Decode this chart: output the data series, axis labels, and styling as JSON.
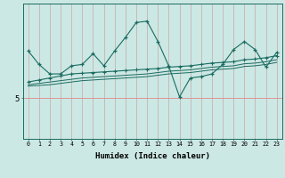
{
  "xlabel": "Humidex (Indice chaleur)",
  "bg_color": "#cce8e4",
  "line_color": "#1a6b60",
  "vgrid_color": "#c4a8a8",
  "hgrid_color": "#e08888",
  "xlim": [
    -0.5,
    23.5
  ],
  "ylim": [
    2,
    12
  ],
  "ytick_val": 5,
  "x": [
    0,
    1,
    2,
    3,
    4,
    5,
    6,
    7,
    8,
    9,
    10,
    11,
    12,
    13,
    14,
    15,
    16,
    17,
    18,
    19,
    20,
    21,
    22,
    23
  ],
  "series1": [
    8.5,
    7.5,
    6.8,
    6.8,
    7.4,
    7.5,
    8.3,
    7.4,
    8.5,
    9.5,
    10.6,
    10.7,
    9.2,
    7.4,
    5.1,
    6.5,
    6.6,
    6.8,
    7.5,
    8.6,
    9.2,
    8.6,
    7.3,
    8.4
  ],
  "series2_slope": [
    6.2,
    6.35,
    6.5,
    6.65,
    6.8,
    6.85,
    6.9,
    6.95,
    7.0,
    7.05,
    7.1,
    7.15,
    7.2,
    7.3,
    7.35,
    7.4,
    7.5,
    7.6,
    7.65,
    7.7,
    7.85,
    7.9,
    8.0,
    8.15
  ],
  "series3_slope": [
    6.0,
    6.1,
    6.2,
    6.3,
    6.4,
    6.5,
    6.55,
    6.6,
    6.65,
    6.7,
    6.75,
    6.8,
    6.9,
    7.0,
    7.05,
    7.1,
    7.2,
    7.3,
    7.35,
    7.4,
    7.55,
    7.6,
    7.7,
    7.85
  ],
  "series4_slope": [
    5.9,
    5.95,
    6.0,
    6.1,
    6.2,
    6.3,
    6.35,
    6.4,
    6.45,
    6.5,
    6.55,
    6.6,
    6.7,
    6.8,
    6.85,
    6.9,
    7.0,
    7.1,
    7.15,
    7.2,
    7.35,
    7.4,
    7.5,
    7.65
  ]
}
